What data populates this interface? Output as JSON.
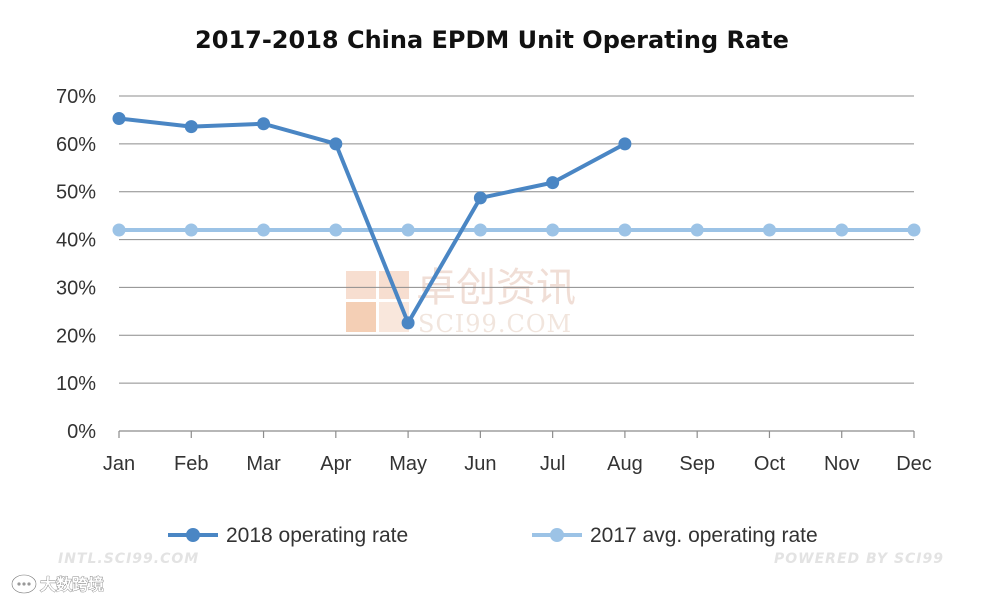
{
  "chart_data": {
    "type": "line",
    "title": "2017-2018 China EPDM Unit Operating Rate",
    "categories": [
      "Jan",
      "Feb",
      "Mar",
      "Apr",
      "May",
      "Jun",
      "Jul",
      "Aug",
      "Sep",
      "Oct",
      "Nov",
      "Dec"
    ],
    "y_ticks": [
      "0%",
      "10%",
      "20%",
      "30%",
      "40%",
      "50%",
      "60%",
      "70%"
    ],
    "ylim": [
      0,
      70
    ],
    "grid": true,
    "legend_position": "bottom",
    "series": [
      {
        "name": "2018 operating rate",
        "color": "#4a86c4",
        "values": [
          65.3,
          63.6,
          64.2,
          60.0,
          22.6,
          48.7,
          51.9,
          60.0,
          null,
          null,
          null,
          null
        ]
      },
      {
        "name": "2017 avg. operating rate",
        "color": "#9cc3e6",
        "values": [
          42,
          42,
          42,
          42,
          42,
          42,
          42,
          42,
          42,
          42,
          42,
          42
        ]
      }
    ]
  },
  "watermark": {
    "logo_text": "卓创资讯",
    "logo_subtext": "SCI99.COM"
  },
  "footer": {
    "left": "INTL.SCI99.COM",
    "right": "POWERED BY SCI99"
  },
  "badge": {
    "text": "大数跨境"
  },
  "icons": {
    "badge_icon": "chat-bubble-icon"
  }
}
